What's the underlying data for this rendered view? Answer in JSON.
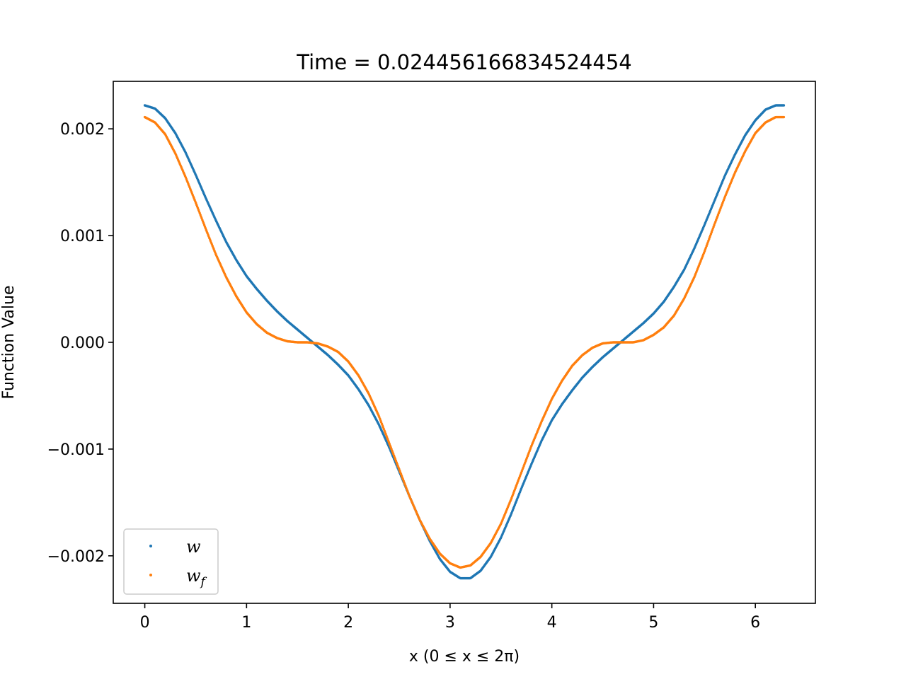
{
  "chart_data": {
    "type": "scatter",
    "title": "Time = 0.024456166834524454",
    "xlabel": "x (0 ≤ x ≤ 2π)",
    "ylabel": "Function Value",
    "xlim": [
      -0.31,
      6.59
    ],
    "ylim": [
      -0.002445,
      0.002445
    ],
    "xticks": [
      0,
      1,
      2,
      3,
      4,
      5,
      6
    ],
    "yticks": [
      -0.002,
      -0.001,
      0.0,
      0.001,
      0.002
    ],
    "ytick_labels": [
      "−0.002",
      "−0.001",
      "0.000",
      "0.001",
      "0.002"
    ],
    "xtick_labels": [
      "0",
      "1",
      "2",
      "3",
      "4",
      "5",
      "6"
    ],
    "grid": false,
    "legend_position": "lower-left",
    "series": [
      {
        "name": "w",
        "color": "#1f77b4",
        "x": [
          0.0,
          0.1,
          0.2,
          0.3,
          0.4,
          0.5,
          0.6,
          0.7,
          0.8,
          0.9,
          1.0,
          1.1,
          1.2,
          1.3,
          1.4,
          1.5,
          1.6,
          1.7,
          1.8,
          1.9,
          2.0,
          2.1,
          2.2,
          2.3,
          2.4,
          2.5,
          2.6,
          2.7,
          2.8,
          2.9,
          3.0,
          3.1,
          3.2,
          3.3,
          3.4,
          3.5,
          3.6,
          3.7,
          3.8,
          3.9,
          4.0,
          4.1,
          4.2,
          4.3,
          4.4,
          4.5,
          4.6,
          4.7,
          4.8,
          4.9,
          5.0,
          5.1,
          5.2,
          5.3,
          5.4,
          5.5,
          5.6,
          5.7,
          5.8,
          5.9,
          6.0,
          6.1,
          6.2,
          6.28
        ],
        "values": [
          0.00222,
          0.00219,
          0.0021,
          0.00196,
          0.00178,
          0.00157,
          0.00135,
          0.00114,
          0.00094,
          0.00077,
          0.00062,
          0.0005,
          0.00039,
          0.00029,
          0.0002,
          0.00012,
          4e-05,
          -4e-05,
          -0.00012,
          -0.00021,
          -0.00031,
          -0.00044,
          -0.00059,
          -0.00077,
          -0.00098,
          -0.00121,
          -0.00144,
          -0.00166,
          -0.00186,
          -0.00203,
          -0.00215,
          -0.00221,
          -0.00221,
          -0.00214,
          -0.00201,
          -0.00183,
          -0.00161,
          -0.00137,
          -0.00114,
          -0.00092,
          -0.00073,
          -0.00058,
          -0.00045,
          -0.00033,
          -0.00023,
          -0.00014,
          -6e-05,
          2e-05,
          0.0001,
          0.00018,
          0.00027,
          0.00038,
          0.00052,
          0.00068,
          0.00088,
          0.0011,
          0.00133,
          0.00156,
          0.00176,
          0.00194,
          0.00208,
          0.00218,
          0.00222,
          0.00222
        ]
      },
      {
        "name": "w_f",
        "color": "#ff7f0e",
        "x": [
          0.0,
          0.1,
          0.2,
          0.3,
          0.4,
          0.5,
          0.6,
          0.7,
          0.8,
          0.9,
          1.0,
          1.1,
          1.2,
          1.3,
          1.4,
          1.5,
          1.6,
          1.7,
          1.8,
          1.9,
          2.0,
          2.1,
          2.2,
          2.3,
          2.4,
          2.5,
          2.6,
          2.7,
          2.8,
          2.9,
          3.0,
          3.1,
          3.2,
          3.3,
          3.4,
          3.5,
          3.6,
          3.7,
          3.8,
          3.9,
          4.0,
          4.1,
          4.2,
          4.3,
          4.4,
          4.5,
          4.6,
          4.7,
          4.8,
          4.9,
          5.0,
          5.1,
          5.2,
          5.3,
          5.4,
          5.5,
          5.6,
          5.7,
          5.8,
          5.9,
          6.0,
          6.1,
          6.2,
          6.28
        ],
        "values": [
          0.00211,
          0.00206,
          0.00195,
          0.00177,
          0.00155,
          0.00131,
          0.00106,
          0.00082,
          0.00061,
          0.00043,
          0.00028,
          0.00017,
          9e-05,
          4e-05,
          1e-05,
          0.0,
          0.0,
          -1e-05,
          -4e-05,
          -9e-05,
          -0.00018,
          -0.00031,
          -0.00048,
          -0.00069,
          -0.00094,
          -0.00119,
          -0.00144,
          -0.00166,
          -0.00184,
          -0.00198,
          -0.00207,
          -0.00211,
          -0.00209,
          -0.00201,
          -0.00188,
          -0.0017,
          -0.00147,
          -0.00122,
          -0.00097,
          -0.00074,
          -0.00053,
          -0.00036,
          -0.00022,
          -0.00012,
          -5e-05,
          -1e-05,
          0.0,
          0.0,
          0.0,
          2e-05,
          7e-05,
          0.00014,
          0.00025,
          0.00041,
          0.00061,
          0.00085,
          0.00111,
          0.00136,
          0.00159,
          0.00179,
          0.00196,
          0.00206,
          0.00211,
          0.00211
        ]
      }
    ]
  }
}
